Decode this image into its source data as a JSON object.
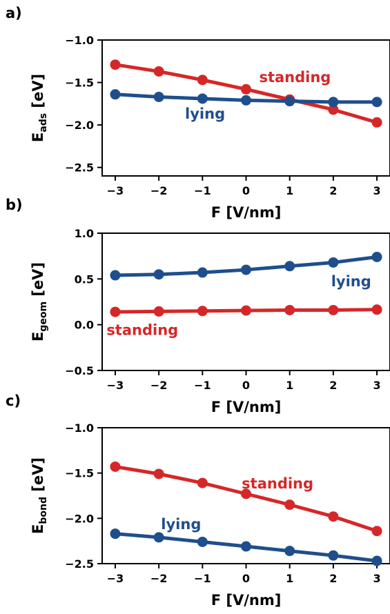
{
  "chart_data": [
    {
      "type": "line",
      "panel_label": "a)",
      "xlabel": "F [V/nm]",
      "ylabel_main": "E",
      "ylabel_sub": "ads",
      "ylabel_unit": " [eV]",
      "xlim": [
        -3.3,
        3.3
      ],
      "ylim": [
        -2.6,
        -1.0
      ],
      "x_ticks": [
        -3,
        -2,
        -1,
        0,
        1,
        2,
        3
      ],
      "x_tick_labels": [
        "−3",
        "−2",
        "−1",
        "0",
        "1",
        "2",
        "3"
      ],
      "y_ticks": [
        -1.0,
        -1.5,
        -2.0,
        -2.5
      ],
      "y_tick_labels": [
        "−1.0",
        "−1.5",
        "−2.0",
        "−2.5"
      ],
      "x": [
        -3,
        -2,
        -1,
        0,
        1,
        2,
        3
      ],
      "series": [
        {
          "name": "standing",
          "color": "#d62728",
          "values": [
            -1.29,
            -1.37,
            -1.47,
            -1.58,
            -1.7,
            -1.82,
            -1.97
          ],
          "label_at": [
            0.3,
            -1.43
          ]
        },
        {
          "name": "lying",
          "color": "#1f4e8c",
          "values": [
            -1.64,
            -1.67,
            -1.69,
            -1.71,
            -1.72,
            -1.73,
            -1.73
          ],
          "label_at": [
            -1.4,
            -1.86
          ]
        }
      ]
    },
    {
      "type": "line",
      "panel_label": "b)",
      "xlabel": "F [V/nm]",
      "ylabel_main": "E",
      "ylabel_sub": "geom",
      "ylabel_unit": " [eV]",
      "xlim": [
        -3.3,
        3.3
      ],
      "ylim": [
        -0.5,
        1.0
      ],
      "x_ticks": [
        -3,
        -2,
        -1,
        0,
        1,
        2,
        3
      ],
      "x_tick_labels": [
        "−3",
        "−2",
        "−1",
        "0",
        "1",
        "2",
        "3"
      ],
      "y_ticks": [
        1.0,
        0.5,
        0.0,
        -0.5
      ],
      "y_tick_labels": [
        "1.0",
        "0.5",
        "0.0",
        "−0.5"
      ],
      "x": [
        -3,
        -2,
        -1,
        0,
        1,
        2,
        3
      ],
      "series": [
        {
          "name": "lying",
          "color": "#1f4e8c",
          "values": [
            0.54,
            0.55,
            0.57,
            0.6,
            0.64,
            0.68,
            0.74
          ],
          "label_at": [
            1.95,
            0.48
          ]
        },
        {
          "name": "standing",
          "color": "#d62728",
          "values": [
            0.14,
            0.145,
            0.15,
            0.155,
            0.16,
            0.16,
            0.165
          ],
          "label_at": [
            -3.2,
            -0.05
          ]
        }
      ]
    },
    {
      "type": "line",
      "panel_label": "c)",
      "xlabel": "F [V/nm]",
      "ylabel_main": "E",
      "ylabel_sub": "bond",
      "ylabel_unit": " [eV]",
      "xlim": [
        -3.3,
        3.3
      ],
      "ylim": [
        -2.5,
        -1.0
      ],
      "x_ticks": [
        -3,
        -2,
        -1,
        0,
        1,
        2,
        3
      ],
      "x_tick_labels": [
        "−3",
        "−2",
        "−1",
        "0",
        "1",
        "2",
        "3"
      ],
      "y_ticks": [
        -1.0,
        -1.5,
        -2.0,
        -2.5
      ],
      "y_tick_labels": [
        "−1.0",
        "−1.5",
        "−2.0",
        "−2.5"
      ],
      "x": [
        -3,
        -2,
        -1,
        0,
        1,
        2,
        3
      ],
      "series": [
        {
          "name": "standing",
          "color": "#d62728",
          "values": [
            -1.43,
            -1.51,
            -1.61,
            -1.73,
            -1.85,
            -1.98,
            -2.14
          ],
          "label_at": [
            -0.1,
            -1.61
          ]
        },
        {
          "name": "lying",
          "color": "#1f4e8c",
          "values": [
            -2.17,
            -2.21,
            -2.26,
            -2.31,
            -2.36,
            -2.41,
            -2.47
          ],
          "label_at": [
            -1.95,
            -2.06
          ]
        }
      ]
    }
  ]
}
